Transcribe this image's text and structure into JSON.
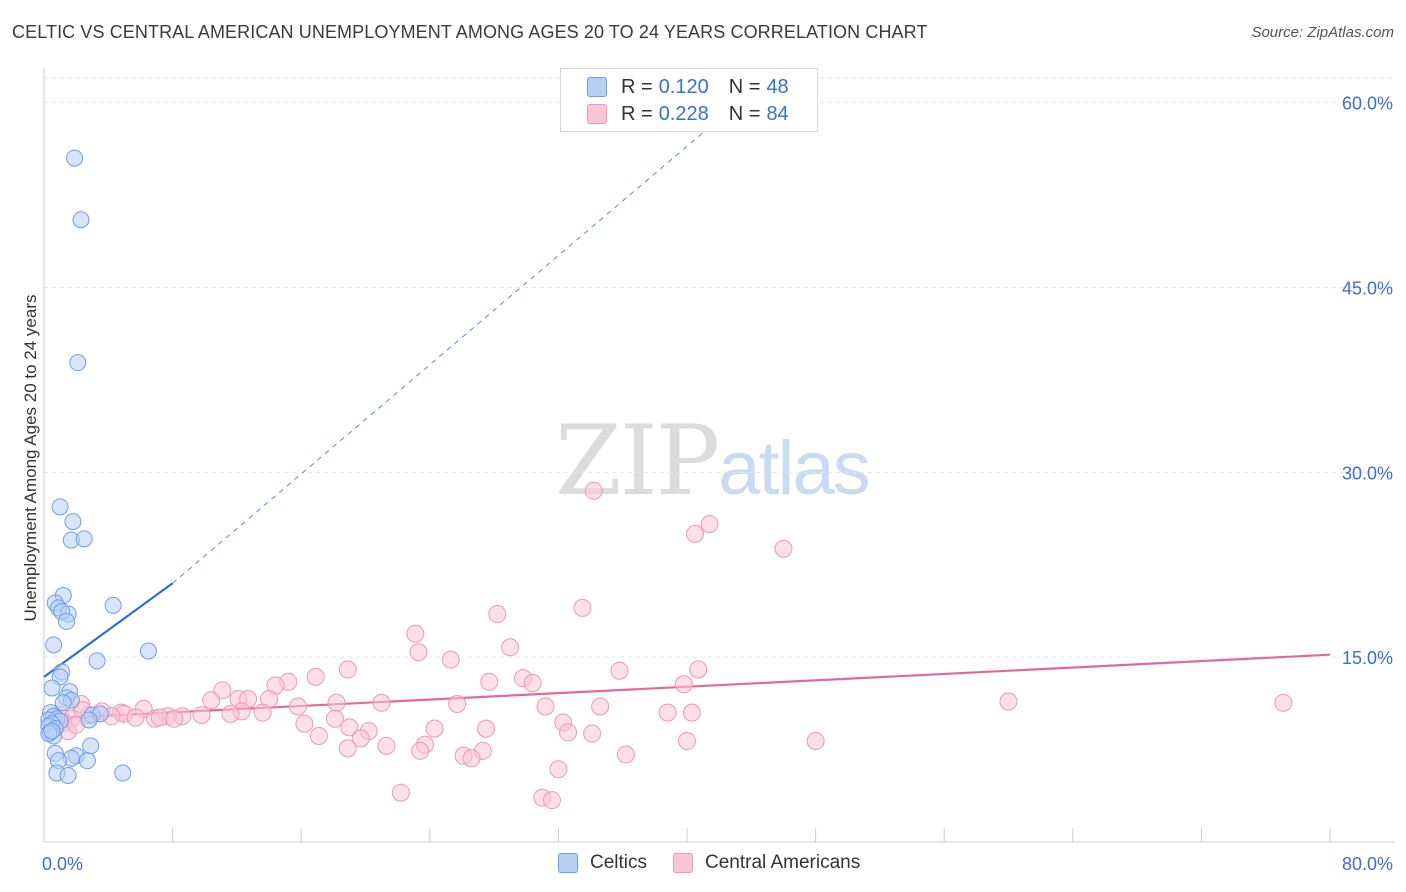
{
  "title": "CELTIC VS CENTRAL AMERICAN UNEMPLOYMENT AMONG AGES 20 TO 24 YEARS CORRELATION CHART",
  "source": "Source: ZipAtlas.com",
  "watermark": {
    "zip": "ZIP",
    "atlas": "atlas"
  },
  "legend": {
    "r_label": "R =",
    "n_label": "N =",
    "rows": [
      {
        "r": "0.120",
        "n": "48"
      },
      {
        "r": "0.228",
        "n": "84"
      }
    ]
  },
  "bottom_legend": [
    "Celtics",
    "Central Americans"
  ],
  "colors": {
    "celtic_fill": "#b8d0f4",
    "celtic_stroke": "#6f9ee6",
    "celtic_line": "#2c6fd4",
    "central_fill": "#f8c6d6",
    "central_stroke": "#ee98b4",
    "central_line": "#e4699a",
    "axis_text": "#3a6fcf",
    "grid": "#e6e6e6"
  },
  "chart_data": {
    "type": "scatter",
    "title": "CELTIC VS CENTRAL AMERICAN UNEMPLOYMENT AMONG AGES 20 TO 24 YEARS CORRELATION CHART",
    "xlabel": "",
    "ylabel": "Unemployment Among Ages 20 to 24 years",
    "xlim": [
      0,
      80
    ],
    "ylim": [
      0,
      62
    ],
    "x_tick_labels": [
      "0.0%",
      "80.0%"
    ],
    "y_ticks": [
      15,
      30,
      45,
      60
    ],
    "y_tick_labels": [
      "15.0%",
      "30.0%",
      "45.0%",
      "60.0%"
    ],
    "series": [
      {
        "name": "Celtics",
        "R": 0.12,
        "N": 48,
        "trend": {
          "x0": 0,
          "y0": 13.4,
          "x1": 8,
          "y1": 21.0,
          "x_end": 45,
          "y_end": 62
        },
        "points": [
          [
            1.9,
            55.5
          ],
          [
            2.3,
            50.5
          ],
          [
            2.1,
            38.9
          ],
          [
            1.0,
            27.2
          ],
          [
            1.8,
            26.0
          ],
          [
            1.7,
            24.5
          ],
          [
            2.5,
            24.6
          ],
          [
            1.2,
            20.0
          ],
          [
            0.7,
            19.4
          ],
          [
            0.9,
            19.0
          ],
          [
            1.5,
            18.5
          ],
          [
            1.1,
            18.7
          ],
          [
            1.4,
            17.9
          ],
          [
            4.3,
            19.2
          ],
          [
            0.6,
            16.0
          ],
          [
            6.5,
            15.5
          ],
          [
            3.3,
            14.7
          ],
          [
            1.1,
            13.8
          ],
          [
            1.0,
            13.4
          ],
          [
            0.5,
            12.5
          ],
          [
            1.6,
            12.2
          ],
          [
            1.4,
            11.7
          ],
          [
            1.7,
            11.5
          ],
          [
            1.2,
            11.3
          ],
          [
            0.4,
            10.5
          ],
          [
            0.6,
            10.2
          ],
          [
            0.8,
            10.0
          ],
          [
            0.3,
            9.9
          ],
          [
            1.0,
            9.8
          ],
          [
            0.5,
            9.6
          ],
          [
            0.3,
            9.4
          ],
          [
            0.7,
            9.2
          ],
          [
            3.0,
            10.3
          ],
          [
            3.5,
            10.4
          ],
          [
            2.8,
            9.9
          ],
          [
            0.4,
            8.9
          ],
          [
            0.6,
            8.6
          ],
          [
            0.3,
            8.8
          ],
          [
            2.9,
            7.8
          ],
          [
            0.7,
            7.2
          ],
          [
            2.0,
            7.0
          ],
          [
            1.7,
            6.8
          ],
          [
            0.9,
            6.6
          ],
          [
            2.7,
            6.6
          ],
          [
            0.8,
            5.6
          ],
          [
            1.5,
            5.4
          ],
          [
            4.9,
            5.6
          ],
          [
            0.5,
            9.0
          ]
        ]
      },
      {
        "name": "Central Americans",
        "R": 0.228,
        "N": 84,
        "trend": {
          "x0": 0,
          "y0": 10.0,
          "x1": 80,
          "y1": 15.2
        },
        "points": [
          [
            34.2,
            28.5
          ],
          [
            41.4,
            25.8
          ],
          [
            40.5,
            25.0
          ],
          [
            46.0,
            23.8
          ],
          [
            28.2,
            18.5
          ],
          [
            33.5,
            19.0
          ],
          [
            23.1,
            16.9
          ],
          [
            29.0,
            15.8
          ],
          [
            23.3,
            15.4
          ],
          [
            25.3,
            14.8
          ],
          [
            18.9,
            14.0
          ],
          [
            35.8,
            13.9
          ],
          [
            40.7,
            14.0
          ],
          [
            16.9,
            13.4
          ],
          [
            15.2,
            13.0
          ],
          [
            27.7,
            13.0
          ],
          [
            29.8,
            13.3
          ],
          [
            39.8,
            12.8
          ],
          [
            30.4,
            12.9
          ],
          [
            14.4,
            12.7
          ],
          [
            11.1,
            12.3
          ],
          [
            12.1,
            11.6
          ],
          [
            14.0,
            11.6
          ],
          [
            12.7,
            11.6
          ],
          [
            10.4,
            11.5
          ],
          [
            21.0,
            11.3
          ],
          [
            18.2,
            11.3
          ],
          [
            25.7,
            11.2
          ],
          [
            31.2,
            11.0
          ],
          [
            34.6,
            11.0
          ],
          [
            15.8,
            11.0
          ],
          [
            2.3,
            11.2
          ],
          [
            3.6,
            10.6
          ],
          [
            4.8,
            10.5
          ],
          [
            5.0,
            10.4
          ],
          [
            6.2,
            10.8
          ],
          [
            7.7,
            10.2
          ],
          [
            9.8,
            10.3
          ],
          [
            8.6,
            10.2
          ],
          [
            13.6,
            10.5
          ],
          [
            12.3,
            10.6
          ],
          [
            11.6,
            10.4
          ],
          [
            4.2,
            10.2
          ],
          [
            5.7,
            10.1
          ],
          [
            6.9,
            10.0
          ],
          [
            7.2,
            10.1
          ],
          [
            8.1,
            10.0
          ],
          [
            38.8,
            10.5
          ],
          [
            40.3,
            10.5
          ],
          [
            60.0,
            11.4
          ],
          [
            77.1,
            11.3
          ],
          [
            1.0,
            10.3
          ],
          [
            1.7,
            10.0
          ],
          [
            2.8,
            10.3
          ],
          [
            1.2,
            9.7
          ],
          [
            2.4,
            10.7
          ],
          [
            16.2,
            9.6
          ],
          [
            18.1,
            10.0
          ],
          [
            19.0,
            9.3
          ],
          [
            20.2,
            9.0
          ],
          [
            17.1,
            8.6
          ],
          [
            19.7,
            8.4
          ],
          [
            24.3,
            9.2
          ],
          [
            27.5,
            9.2
          ],
          [
            32.3,
            9.7
          ],
          [
            32.6,
            8.9
          ],
          [
            34.1,
            8.8
          ],
          [
            23.7,
            7.9
          ],
          [
            18.9,
            7.6
          ],
          [
            21.3,
            7.8
          ],
          [
            23.4,
            7.4
          ],
          [
            27.3,
            7.4
          ],
          [
            36.2,
            7.1
          ],
          [
            40.0,
            8.2
          ],
          [
            48.0,
            8.2
          ],
          [
            26.1,
            7.0
          ],
          [
            26.6,
            6.8
          ],
          [
            32.0,
            5.9
          ],
          [
            22.2,
            4.0
          ],
          [
            31.0,
            3.6
          ],
          [
            31.6,
            3.4
          ],
          [
            1.5,
            9.0
          ],
          [
            0.6,
            9.8
          ],
          [
            2.0,
            9.5
          ]
        ]
      }
    ]
  }
}
